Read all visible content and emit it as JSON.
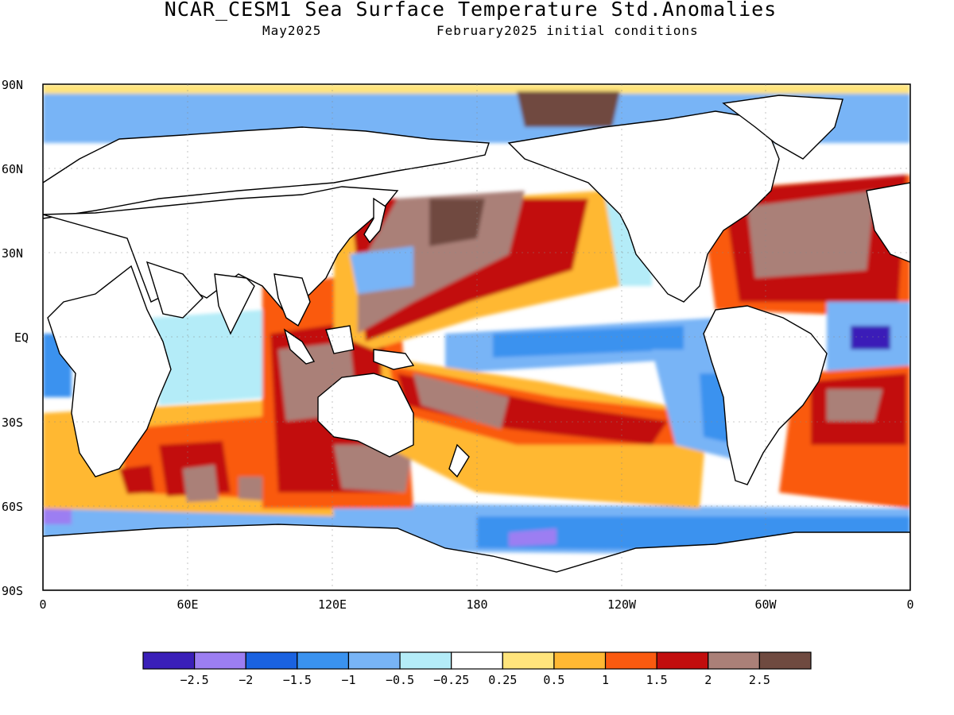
{
  "title": "NCAR_CESM1 Sea Surface Temperature Std.Anomalies",
  "subtitle_left": "May2025",
  "subtitle_right": "February2025 initial conditions",
  "lat_labels": [
    "90N",
    "60N",
    "30N",
    "EQ",
    "30S",
    "60S",
    "90S"
  ],
  "lon_labels": [
    "0",
    "60E",
    "120E",
    "180",
    "120W",
    "60W",
    "0"
  ],
  "colorbar": {
    "colors": [
      "#3a1fb8",
      "#9c7ef2",
      "#1a62e0",
      "#3a92ef",
      "#78b4f6",
      "#b4ecf8",
      "#ffffff",
      "#ffe47c",
      "#ffb833",
      "#fa5a10",
      "#c20d0d",
      "#aa8078",
      "#6f4a40"
    ],
    "tick_labels": [
      "−2.5",
      "−2",
      "−1.5",
      "−1",
      "−0.5",
      "−0.25",
      "0.25",
      "0.5",
      "1",
      "1.5",
      "2",
      "2.5"
    ]
  },
  "anomaly_palette": {
    "strong_warm": "#6f4a40",
    "warm_2": "#aa8078",
    "warm_1_5": "#c20d0d",
    "warm_1": "#fa5a10",
    "warm_0_5": "#ffb833",
    "warm_0_25": "#ffe47c",
    "neutral": "#ffffff",
    "cool_0_25": "#b4ecf8",
    "cool_0_5": "#78b4f6",
    "cool_1": "#3a92ef",
    "cool_1_5": "#1a62e0",
    "cool_2": "#9c7ef2",
    "cool_2_5": "#3a1fb8"
  }
}
